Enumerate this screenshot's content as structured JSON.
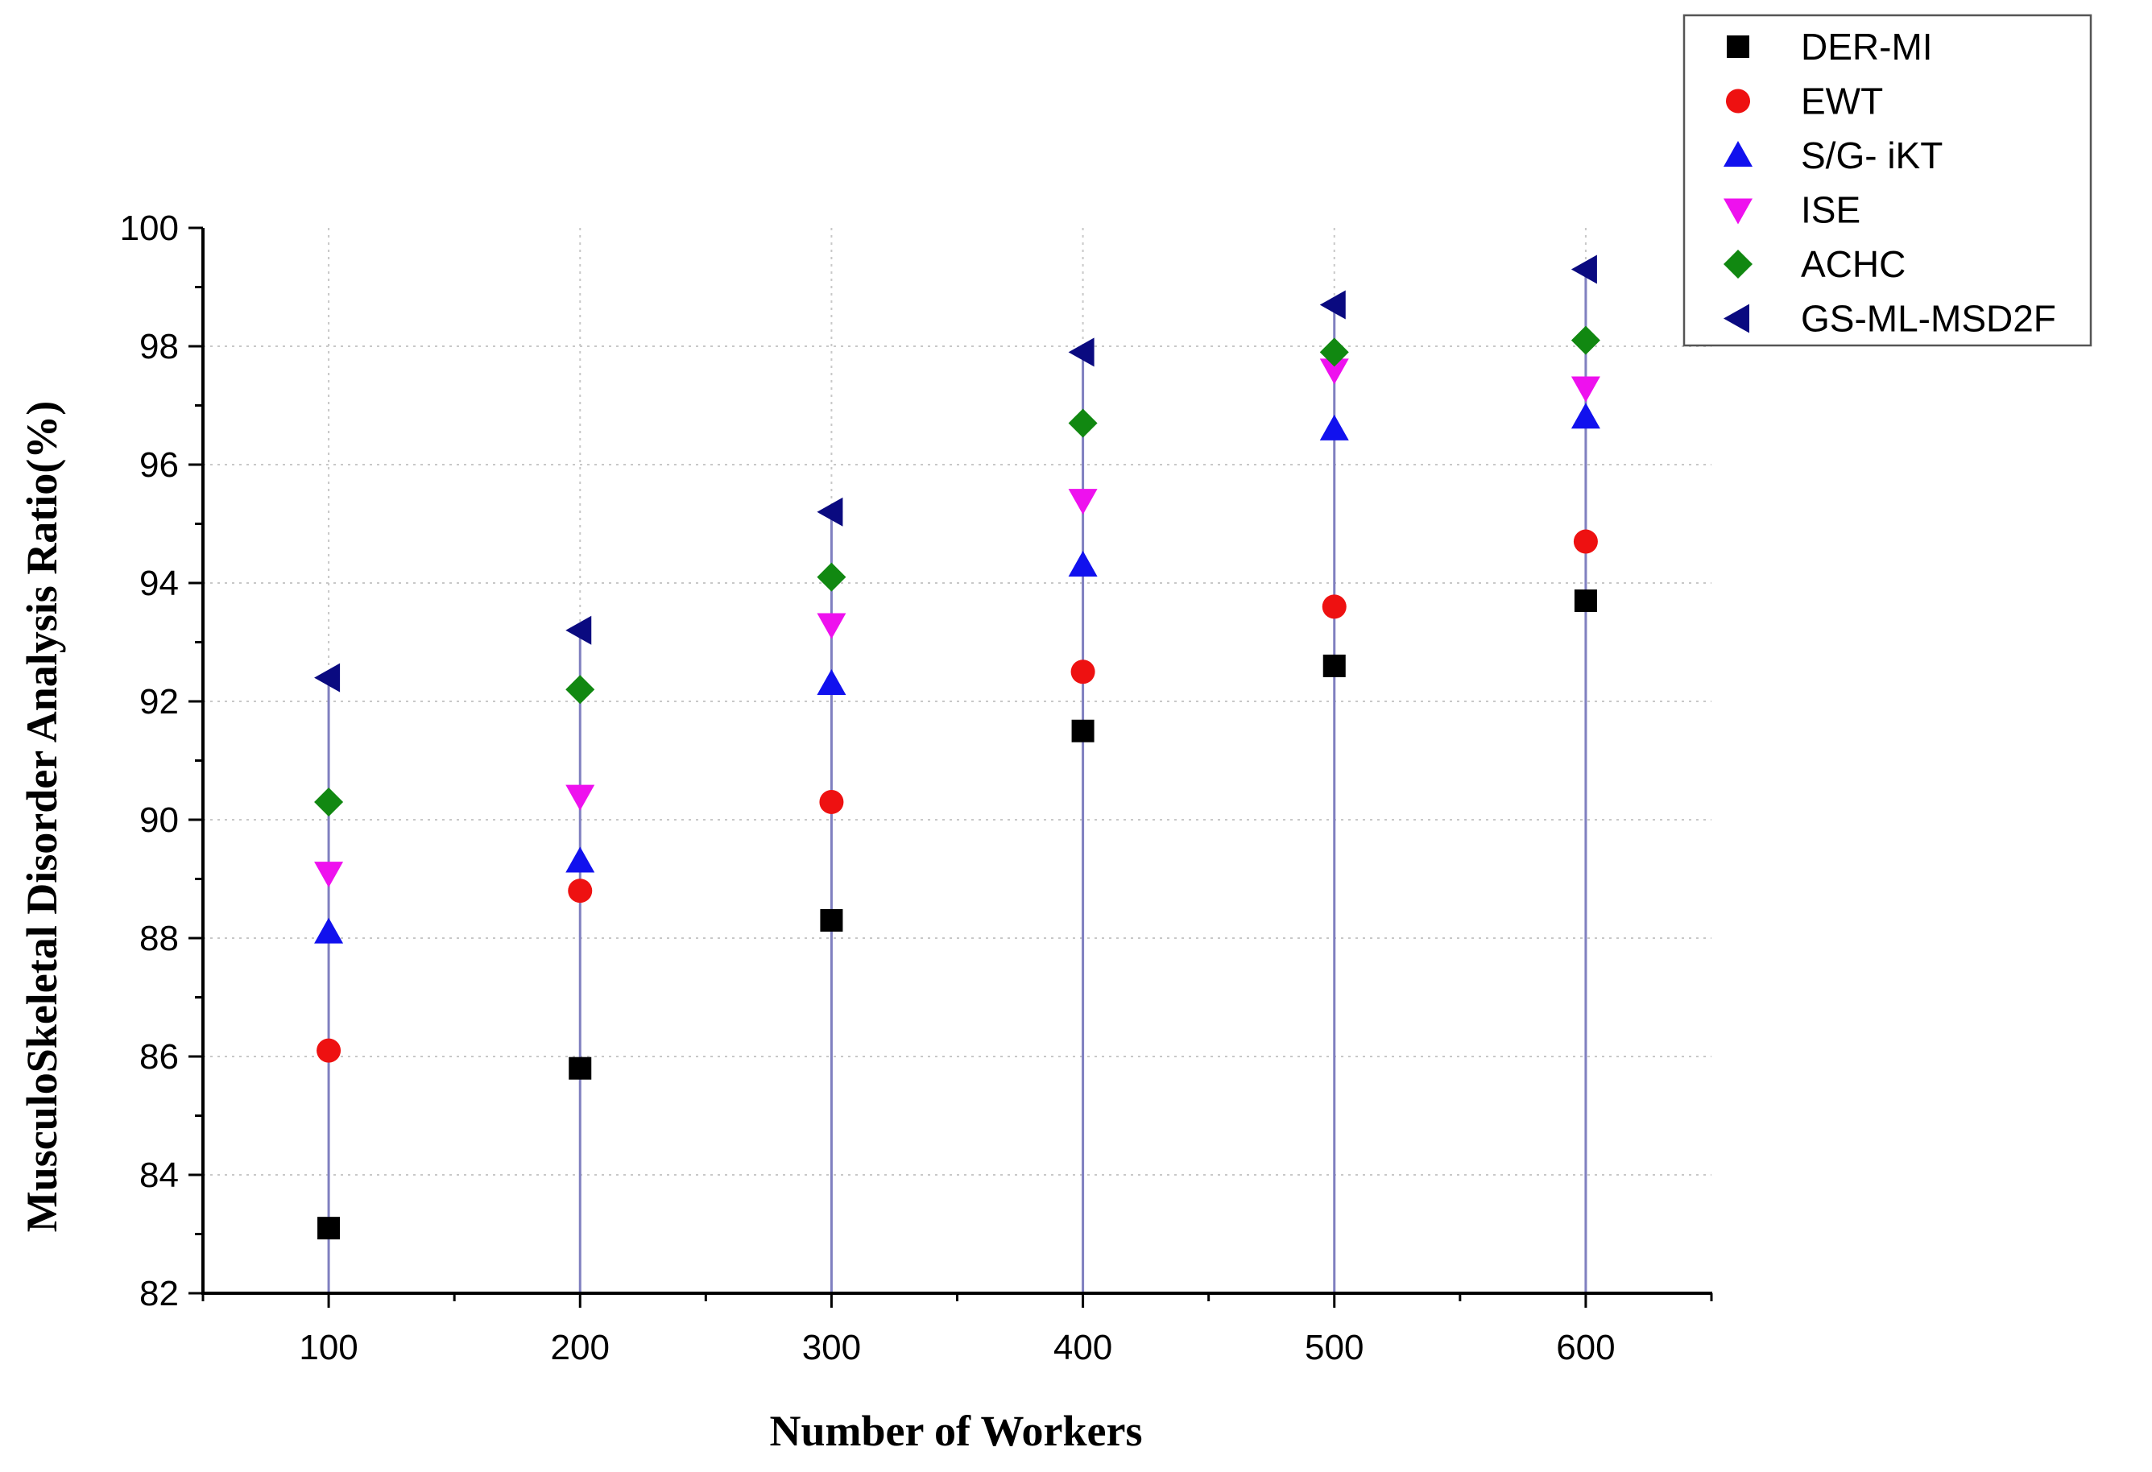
{
  "chart_data": {
    "type": "scatter",
    "xlabel": "Number of Workers",
    "ylabel": "MusculoSkeletal Disorder Analysis Ratio(%)",
    "x": [
      100,
      200,
      300,
      400,
      500,
      600
    ],
    "xlim": [
      50,
      650
    ],
    "ylim": [
      82,
      100
    ],
    "xticks": [
      "100",
      "200",
      "300",
      "400",
      "500",
      "600"
    ],
    "yticks": [
      "82",
      "84",
      "86",
      "88",
      "90",
      "92",
      "94",
      "96",
      "98",
      "100"
    ],
    "grid": true,
    "legend_position": "top-right",
    "series": [
      {
        "name": "DER-MI",
        "marker": "square",
        "color": "#000000",
        "values": [
          83.1,
          85.8,
          88.3,
          91.5,
          92.6,
          93.7
        ]
      },
      {
        "name": "EWT",
        "marker": "circle",
        "color": "#ee1111",
        "values": [
          86.1,
          88.8,
          90.3,
          92.5,
          93.6,
          94.7
        ]
      },
      {
        "name": "S/G- iKT",
        "marker": "triangle-up",
        "color": "#1111ee",
        "values": [
          88.1,
          89.3,
          92.3,
          94.3,
          96.6,
          96.8
        ]
      },
      {
        "name": "ISE",
        "marker": "triangle-down",
        "color": "#ee11ee",
        "values": [
          89.1,
          90.4,
          93.3,
          95.4,
          97.6,
          97.3
        ]
      },
      {
        "name": "ACHC",
        "marker": "diamond",
        "color": "#118811",
        "values": [
          90.3,
          92.2,
          94.1,
          96.7,
          97.9,
          98.1
        ]
      },
      {
        "name": "GS-ML-MSD2F",
        "marker": "triangle-left",
        "color": "#0a0a80",
        "values": [
          92.4,
          93.2,
          95.2,
          97.9,
          98.7,
          99.3
        ]
      }
    ]
  }
}
